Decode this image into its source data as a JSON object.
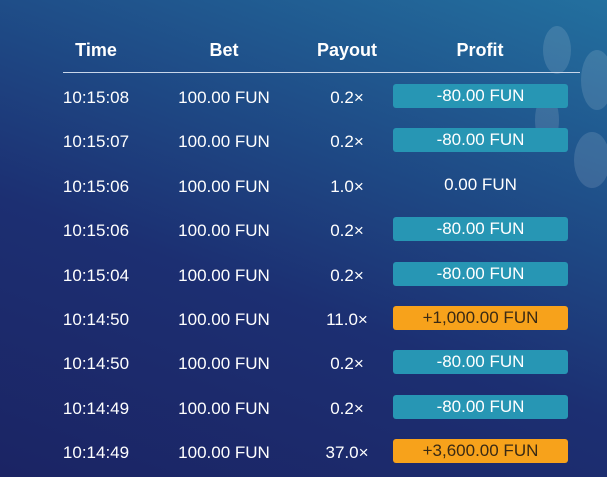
{
  "headers": {
    "time": "Time",
    "bet": "Bet",
    "payout": "Payout",
    "profit": "Profit"
  },
  "colors": {
    "loss": "#2796b4",
    "win": "#f7a21b"
  },
  "rows": [
    {
      "time": "10:15:08",
      "bet": "100.00 FUN",
      "payout": "0.2×",
      "profit": "-80.00 FUN",
      "type": "neg"
    },
    {
      "time": "10:15:07",
      "bet": "100.00 FUN",
      "payout": "0.2×",
      "profit": "-80.00 FUN",
      "type": "neg"
    },
    {
      "time": "10:15:06",
      "bet": "100.00 FUN",
      "payout": "1.0×",
      "profit": "0.00 FUN",
      "type": "zero"
    },
    {
      "time": "10:15:06",
      "bet": "100.00 FUN",
      "payout": "0.2×",
      "profit": "-80.00 FUN",
      "type": "neg"
    },
    {
      "time": "10:15:04",
      "bet": "100.00 FUN",
      "payout": "0.2×",
      "profit": "-80.00 FUN",
      "type": "neg"
    },
    {
      "time": "10:14:50",
      "bet": "100.00 FUN",
      "payout": "11.0×",
      "profit": "+1,000.00 FUN",
      "type": "pos"
    },
    {
      "time": "10:14:50",
      "bet": "100.00 FUN",
      "payout": "0.2×",
      "profit": "-80.00 FUN",
      "type": "neg"
    },
    {
      "time": "10:14:49",
      "bet": "100.00 FUN",
      "payout": "0.2×",
      "profit": "-80.00 FUN",
      "type": "neg"
    },
    {
      "time": "10:14:49",
      "bet": "100.00 FUN",
      "payout": "37.0×",
      "profit": "+3,600.00 FUN",
      "type": "pos"
    }
  ]
}
